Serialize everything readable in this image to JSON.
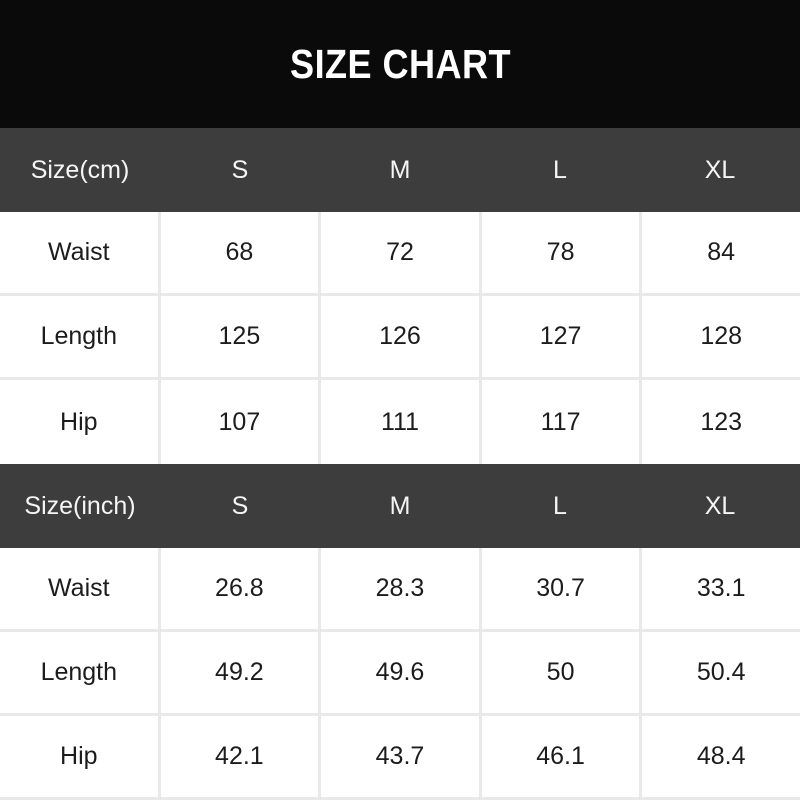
{
  "title": "SIZE CHART",
  "colors": {
    "banner_bg": "#0a0a0a",
    "header_bg": "#3d3d3d",
    "header_text": "#f5f5f5",
    "cell_text": "#1c1c1c",
    "row_bg": "#ffffff",
    "border": "#e9e9e9"
  },
  "chart_data": {
    "type": "table",
    "title": "SIZE CHART",
    "layout": {
      "columns": 5,
      "sections": 2,
      "grid": "light-gray cell borders on white rows, no borders in dark header rows"
    },
    "sections": [
      {
        "unit": "cm",
        "header": [
          "Size(cm)",
          "S",
          "M",
          "L",
          "XL"
        ],
        "rows": [
          {
            "label": "Waist",
            "values": [
              "68",
              "72",
              "78",
              "84"
            ]
          },
          {
            "label": "Length",
            "values": [
              "125",
              "126",
              "127",
              "128"
            ]
          },
          {
            "label": "Hip",
            "values": [
              "107",
              "111",
              "117",
              "123"
            ]
          }
        ]
      },
      {
        "unit": "inch",
        "header": [
          "Size(inch)",
          "S",
          "M",
          "L",
          "XL"
        ],
        "rows": [
          {
            "label": "Waist",
            "values": [
              "26.8",
              "28.3",
              "30.7",
              "33.1"
            ]
          },
          {
            "label": "Length",
            "values": [
              "49.2",
              "49.6",
              "50",
              "50.4"
            ]
          },
          {
            "label": "Hip",
            "values": [
              "42.1",
              "43.7",
              "46.1",
              "48.4"
            ]
          }
        ]
      }
    ]
  }
}
